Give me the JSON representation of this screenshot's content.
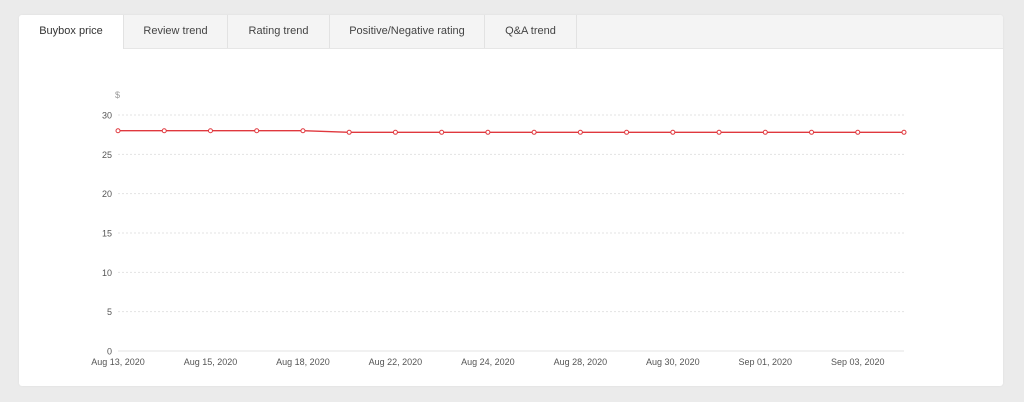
{
  "tabs": [
    {
      "label": "Buybox price",
      "active": true
    },
    {
      "label": "Review trend",
      "active": false
    },
    {
      "label": "Rating trend",
      "active": false
    },
    {
      "label": "Positive/Negative rating",
      "active": false
    },
    {
      "label": "Q&A trend",
      "active": false
    }
  ],
  "colors": {
    "line": "#e0383e",
    "grid": "#e3e3e3",
    "axis_text": "#555555",
    "unit_text": "#999999"
  },
  "chart_data": {
    "type": "line",
    "unit_label": "$",
    "ylim": [
      0,
      30
    ],
    "yticks": [
      0,
      5,
      10,
      15,
      20,
      25,
      30
    ],
    "grid": true,
    "x_tick_labels": [
      "Aug 13, 2020",
      "Aug 15, 2020",
      "Aug 18, 2020",
      "Aug 22, 2020",
      "Aug 24, 2020",
      "Aug 28, 2020",
      "Aug 30, 2020",
      "Sep 01, 2020",
      "Sep 03, 2020"
    ],
    "x_tick_point_index": [
      0,
      2,
      4,
      6,
      8,
      10,
      12,
      14,
      16
    ],
    "series": [
      {
        "values": [
          28.0,
          28.0,
          28.0,
          28.0,
          28.0,
          27.8,
          27.8,
          27.8,
          27.8,
          27.8,
          27.8,
          27.8,
          27.8,
          27.8,
          27.8,
          27.8,
          27.8,
          27.8
        ]
      }
    ]
  }
}
